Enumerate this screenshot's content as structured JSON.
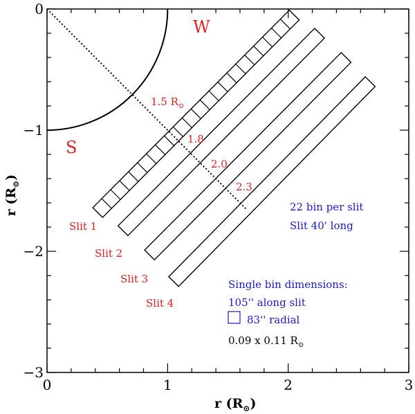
{
  "chart_data": {
    "type": "diagram",
    "xlabel": "r (R",
    "ylabel": "r (R",
    "label_suffix": ")",
    "sun_symbol": "⊙",
    "xlim": [
      0,
      3
    ],
    "ylim": [
      -3,
      0
    ],
    "x_tick_labels": [
      "0",
      "1",
      "2",
      "3"
    ],
    "y_tick_labels": [
      "0",
      "−1",
      "−2",
      "−3"
    ],
    "limb": {
      "radius": 1
    },
    "diagonal": {
      "x": [
        0,
        1.65
      ],
      "y": [
        0,
        -1.65
      ]
    },
    "directions": {
      "west": "W",
      "south": "S"
    },
    "slits": [
      {
        "name": "Slit 1",
        "bins": 22,
        "outer_end": [
          2.05,
          -0.05
        ],
        "inner_end": [
          0.42,
          -1.68
        ]
      },
      {
        "name": "Slit 2",
        "bins": 22,
        "outer_end": [
          2.26,
          -0.2
        ],
        "inner_end": [
          0.63,
          -1.83
        ]
      },
      {
        "name": "Slit 3",
        "bins": 22,
        "outer_end": [
          2.48,
          -0.4
        ],
        "inner_end": [
          0.85,
          -2.03
        ]
      },
      {
        "name": "Slit 4",
        "bins": 22,
        "outer_end": [
          2.68,
          -0.6
        ],
        "inner_end": [
          1.05,
          -2.25
        ]
      }
    ],
    "radial_markers": [
      "1.5 R",
      "1.8",
      "2.0",
      "2.3"
    ],
    "info_blue": [
      "22 bin per slit",
      "Slit 40' long"
    ],
    "bin_info": [
      "Single bin dimensions:",
      "105'' along slit",
      "83'' radial"
    ],
    "bin_size": "0.09 x 0.11 R",
    "colors": {
      "red": "#e02020",
      "blue": "#1a1acc",
      "black": "#000000"
    }
  }
}
